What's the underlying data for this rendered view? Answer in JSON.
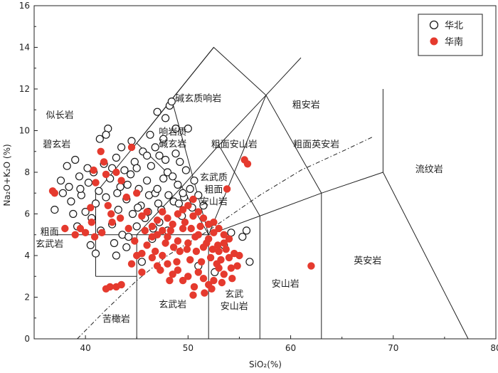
{
  "chart_data": {
    "type": "scatter",
    "xlabel": "SiO₂(%)",
    "ylabel": "Na₂O+K₂O (%)",
    "xlim": [
      35,
      80
    ],
    "ylim": [
      0,
      16
    ],
    "xticks": [
      40,
      50,
      60,
      70,
      80
    ],
    "yticks": [
      0,
      2,
      4,
      6,
      8,
      10,
      12,
      14,
      16
    ],
    "legend": {
      "placement": "top-right",
      "entries": [
        "华北",
        "华南"
      ]
    },
    "colors": {
      "huabei_edge": "#1a1a1a",
      "huabei_fill": "#ffffff",
      "huanan_fill": "#e53a2e",
      "line": "#222222"
    },
    "field_labels": [
      {
        "id": "foidite",
        "lines": [
          "似长岩"
        ],
        "x": 37.5,
        "y": 10.6
      },
      {
        "id": "basanite",
        "lines": [
          "碧玄岩"
        ],
        "x": 37.2,
        "y": 9.2
      },
      {
        "id": "phonolite",
        "lines": [
          "碱玄质响岩"
        ],
        "x": 51.0,
        "y": 11.4
      },
      {
        "id": "tephriphonolite",
        "lines": [
          "响岩质",
          "碱玄岩"
        ],
        "x": 48.5,
        "y": 9.8
      },
      {
        "id": "trachyandesite",
        "lines": [
          "粗面安山岩"
        ],
        "x": 54.5,
        "y": 9.2
      },
      {
        "id": "trachyte",
        "lines": [
          "粗安岩"
        ],
        "x": 61.5,
        "y": 11.1
      },
      {
        "id": "trachydacite",
        "lines": [
          "粗面英安岩"
        ],
        "x": 62.5,
        "y": 9.2
      },
      {
        "id": "rhyolite",
        "lines": [
          "流纹岩"
        ],
        "x": 73.5,
        "y": 8.0
      },
      {
        "id": "basaltic-trachyandesite",
        "lines": [
          "玄武质",
          "粗面",
          "安山岩"
        ],
        "x": 52.5,
        "y": 7.6
      },
      {
        "id": "trachybasalt",
        "lines": [
          "粗面",
          "玄武岩"
        ],
        "x": 36.5,
        "y": 5.0
      },
      {
        "id": "picrobasalt",
        "lines": [
          "苦橄岩"
        ],
        "x": 43.0,
        "y": 0.8
      },
      {
        "id": "basalt",
        "lines": [
          "玄武岩"
        ],
        "x": 48.5,
        "y": 1.5
      },
      {
        "id": "basaltic-andesite",
        "lines": [
          "玄武",
          "安山岩"
        ],
        "x": 54.5,
        "y": 2.0
      },
      {
        "id": "andesite",
        "lines": [
          "安山岩"
        ],
        "x": 59.5,
        "y": 2.5
      },
      {
        "id": "dacite",
        "lines": [
          "英安岩"
        ],
        "x": 67.5,
        "y": 3.6
      }
    ],
    "boundaries": [
      [
        [
          41,
          3
        ],
        [
          41,
          7
        ],
        [
          45,
          9.4
        ],
        [
          48.4,
          11.5
        ],
        [
          52.5,
          14
        ],
        [
          57.6,
          11.7
        ],
        [
          63,
          7
        ],
        [
          69,
          8
        ],
        [
          77.3,
          0
        ]
      ],
      [
        [
          41,
          3
        ],
        [
          45,
          3
        ]
      ],
      [
        [
          45,
          0
        ],
        [
          45,
          5
        ],
        [
          49.4,
          7.3
        ],
        [
          53,
          9.3
        ],
        [
          57.6,
          11.7
        ]
      ],
      [
        [
          52,
          0
        ],
        [
          52,
          5
        ],
        [
          57,
          5.9
        ],
        [
          63,
          7
        ]
      ],
      [
        [
          57,
          0
        ],
        [
          57,
          5.9
        ]
      ],
      [
        [
          63,
          0
        ],
        [
          63,
          7
        ]
      ],
      [
        [
          69,
          8
        ],
        [
          69,
          12
        ]
      ],
      [
        [
          45,
          5
        ],
        [
          52,
          5
        ],
        [
          57.6,
          11.7
        ],
        [
          61,
          13.5
        ]
      ],
      [
        [
          37,
          5
        ],
        [
          45,
          5
        ]
      ],
      [
        [
          45,
          9.4
        ],
        [
          52.5,
          14
        ]
      ],
      [
        [
          52,
          5
        ],
        [
          49.4,
          7.3
        ],
        [
          45,
          9.4
        ]
      ],
      [
        [
          52,
          5
        ],
        [
          48.4,
          11.5
        ]
      ],
      [
        [
          57,
          5.9
        ],
        [
          53,
          9.3
        ]
      ]
    ],
    "alkaline_line": [
      [
        39.2,
        0
      ],
      [
        42,
        1.4
      ],
      [
        45,
        2.8
      ],
      [
        48,
        4
      ],
      [
        52,
        5.2
      ],
      [
        57,
        6.9
      ],
      [
        61,
        8.1
      ],
      [
        65,
        9
      ],
      [
        68,
        9.7
      ]
    ],
    "series": [
      {
        "name": "华北",
        "points": [
          [
            37,
            6.2
          ],
          [
            37.6,
            7.6
          ],
          [
            37.8,
            7.0
          ],
          [
            38.2,
            8.3
          ],
          [
            38.4,
            7.3
          ],
          [
            38.6,
            6.6
          ],
          [
            38.8,
            6.0
          ],
          [
            39.0,
            8.6
          ],
          [
            39.2,
            5.4
          ],
          [
            39.4,
            7.8
          ],
          [
            39.6,
            6.9
          ],
          [
            40.0,
            6.1
          ],
          [
            40.3,
            7.5
          ],
          [
            40.6,
            5.8
          ],
          [
            40.8,
            8.0
          ],
          [
            41.0,
            6.5
          ],
          [
            41.3,
            7.1
          ],
          [
            41.5,
            5.2
          ],
          [
            41.8,
            8.4
          ],
          [
            42.2,
            10.1
          ],
          [
            42.0,
            6.8
          ],
          [
            42.4,
            7.7
          ],
          [
            42.6,
            5.5
          ],
          [
            42.8,
            4.6
          ],
          [
            43.0,
            8.7
          ],
          [
            43.2,
            6.2
          ],
          [
            43.4,
            7.3
          ],
          [
            43.6,
            5.0
          ],
          [
            43.8,
            8.1
          ],
          [
            44.0,
            6.7
          ],
          [
            44.2,
            4.9
          ],
          [
            44.4,
            7.9
          ],
          [
            44.6,
            6.0
          ],
          [
            44.8,
            8.5
          ],
          [
            45.0,
            5.4
          ],
          [
            45.2,
            7.2
          ],
          [
            45.4,
            6.4
          ],
          [
            45.6,
            9.0
          ],
          [
            45.8,
            5.8
          ],
          [
            46.0,
            7.6
          ],
          [
            46.2,
            6.9
          ],
          [
            46.4,
            8.3
          ],
          [
            46.6,
            5.3
          ],
          [
            46.8,
            7.0
          ],
          [
            47.0,
            10.9
          ],
          [
            47.2,
            8.8
          ],
          [
            47.4,
            6.2
          ],
          [
            47.6,
            7.7
          ],
          [
            47.8,
            10.6
          ],
          [
            48.0,
            8.0
          ],
          [
            48.2,
            11.2
          ],
          [
            48.4,
            11.4
          ],
          [
            48.6,
            6.6
          ],
          [
            48.8,
            10.1
          ],
          [
            49.0,
            7.4
          ],
          [
            49.2,
            8.5
          ],
          [
            49.4,
            5.9
          ],
          [
            49.6,
            6.8
          ],
          [
            49.8,
            8.1
          ],
          [
            50.0,
            10.1
          ],
          [
            50.2,
            7.2
          ],
          [
            50.4,
            6.3
          ],
          [
            40.5,
            4.5
          ],
          [
            41.0,
            4.1
          ],
          [
            43.0,
            4.0
          ],
          [
            44.0,
            4.4
          ],
          [
            45.5,
            3.7
          ],
          [
            46.5,
            4.8
          ],
          [
            47.2,
            5.6
          ],
          [
            48.0,
            5.2
          ],
          [
            43.5,
            9.2
          ],
          [
            44.5,
            9.5
          ],
          [
            46.3,
            9.8
          ],
          [
            47.6,
            9.6
          ],
          [
            45.0,
            8.2
          ],
          [
            46.0,
            8.8
          ],
          [
            47.0,
            7.2
          ],
          [
            48.5,
            7.8
          ],
          [
            49.5,
            7.0
          ],
          [
            50.6,
            7.6
          ],
          [
            51.0,
            6.9
          ],
          [
            51.5,
            6.4
          ],
          [
            42.6,
            8.2
          ],
          [
            43.1,
            7.0
          ],
          [
            44.1,
            7.4
          ],
          [
            45.1,
            6.3
          ],
          [
            46.1,
            6.1
          ],
          [
            47.1,
            6.5
          ],
          [
            48.1,
            6.9
          ],
          [
            49.1,
            6.5
          ],
          [
            39.5,
            7.2
          ],
          [
            40.2,
            8.2
          ],
          [
            41.4,
            9.6
          ],
          [
            42.0,
            9.8
          ],
          [
            46.8,
            9.2
          ],
          [
            47.8,
            8.6
          ],
          [
            48.8,
            8.9
          ],
          [
            55.3,
            4.9
          ],
          [
            55.7,
            5.2
          ],
          [
            56.0,
            3.7
          ],
          [
            53.5,
            4.5
          ],
          [
            54.2,
            5.1
          ],
          [
            51.0,
            3.5
          ],
          [
            52.6,
            3.2
          ]
        ]
      },
      {
        "name": "华南",
        "points": [
          [
            36.8,
            7.1
          ],
          [
            37.0,
            7.0
          ],
          [
            38.0,
            5.3
          ],
          [
            39.0,
            5.0
          ],
          [
            39.5,
            5.3
          ],
          [
            40.0,
            5.1
          ],
          [
            40.5,
            6.3
          ],
          [
            40.8,
            8.1
          ],
          [
            41.0,
            7.5
          ],
          [
            41.5,
            9.0
          ],
          [
            41.8,
            8.5
          ],
          [
            42.0,
            7.9
          ],
          [
            42.2,
            6.4
          ],
          [
            42.5,
            6.0
          ],
          [
            43.0,
            8.0
          ],
          [
            43.5,
            7.6
          ],
          [
            44.0,
            6.8
          ],
          [
            44.5,
            9.2
          ],
          [
            45.0,
            7.0
          ],
          [
            45.5,
            5.9
          ],
          [
            46.0,
            6.1
          ],
          [
            46.5,
            5.4
          ],
          [
            47.0,
            5.7
          ],
          [
            47.5,
            5.2
          ],
          [
            48.0,
            4.9
          ],
          [
            48.5,
            5.5
          ],
          [
            49.0,
            4.7
          ],
          [
            49.5,
            5.3
          ],
          [
            50.0,
            4.6
          ],
          [
            50.5,
            5.9
          ],
          [
            51.0,
            5.0
          ],
          [
            51.5,
            4.4
          ],
          [
            52.0,
            4.8
          ],
          [
            52.5,
            5.1
          ],
          [
            53.0,
            4.2
          ],
          [
            53.5,
            4.6
          ],
          [
            54.0,
            3.9
          ],
          [
            54.5,
            4.1
          ],
          [
            55.0,
            4.0
          ],
          [
            55.5,
            8.6
          ],
          [
            55.8,
            8.4
          ],
          [
            53.8,
            7.2
          ],
          [
            62.0,
            3.5
          ],
          [
            47.5,
            4.0
          ],
          [
            48.0,
            3.6
          ],
          [
            48.5,
            3.1
          ],
          [
            49.0,
            3.3
          ],
          [
            49.5,
            2.8
          ],
          [
            50.0,
            3.0
          ],
          [
            50.5,
            2.1
          ],
          [
            51.0,
            3.2
          ],
          [
            51.5,
            2.9
          ],
          [
            52.0,
            2.6
          ],
          [
            52.5,
            2.8
          ],
          [
            53.0,
            3.4
          ],
          [
            53.5,
            3.1
          ],
          [
            46.0,
            4.5
          ],
          [
            46.5,
            3.9
          ],
          [
            47.0,
            3.5
          ],
          [
            45.5,
            4.1
          ],
          [
            42.0,
            2.4
          ],
          [
            42.4,
            2.5
          ],
          [
            43.0,
            2.5
          ],
          [
            43.5,
            2.6
          ],
          [
            44.5,
            3.6
          ],
          [
            45.0,
            4.0
          ],
          [
            45.5,
            3.2
          ],
          [
            49.0,
            6.0
          ],
          [
            49.5,
            6.2
          ],
          [
            50.0,
            6.4
          ],
          [
            50.5,
            6.7
          ],
          [
            51.0,
            6.1
          ],
          [
            51.5,
            5.8
          ],
          [
            52.0,
            5.5
          ],
          [
            52.5,
            5.6
          ],
          [
            53.0,
            5.3
          ],
          [
            53.5,
            5.0
          ],
          [
            54.0,
            4.8
          ],
          [
            48.0,
            5.8
          ],
          [
            47.5,
            6.1
          ],
          [
            47.0,
            5.0
          ],
          [
            46.5,
            4.9
          ],
          [
            50.2,
            3.8
          ],
          [
            50.8,
            4.2
          ],
          [
            51.3,
            3.7
          ],
          [
            52.2,
            3.9
          ],
          [
            52.8,
            3.6
          ],
          [
            53.2,
            3.8
          ],
          [
            54.2,
            3.4
          ],
          [
            54.8,
            3.5
          ],
          [
            49.2,
            4.2
          ],
          [
            48.6,
            4.4
          ],
          [
            47.8,
            4.6
          ],
          [
            51.8,
            4.6
          ],
          [
            50.3,
            5.3
          ],
          [
            49.7,
            5.6
          ],
          [
            48.3,
            5.2
          ],
          [
            52.4,
            4.3
          ],
          [
            53.7,
            4.3
          ],
          [
            51.2,
            5.4
          ],
          [
            50.7,
            4.9
          ],
          [
            49.9,
            4.3
          ],
          [
            48.9,
            3.7
          ],
          [
            52.9,
            4.5
          ],
          [
            40.6,
            5.6
          ],
          [
            40.9,
            4.9
          ],
          [
            41.6,
            5.1
          ],
          [
            42.6,
            5.6
          ],
          [
            43.4,
            5.8
          ],
          [
            44.2,
            5.3
          ],
          [
            44.8,
            4.7
          ],
          [
            45.8,
            5.2
          ],
          [
            46.8,
            4.2
          ],
          [
            47.3,
            3.3
          ],
          [
            48.2,
            2.8
          ],
          [
            50.6,
            2.5
          ],
          [
            51.6,
            2.2
          ],
          [
            52.3,
            2.4
          ],
          [
            53.3,
            2.7
          ],
          [
            54.3,
            2.9
          ]
        ]
      }
    ]
  }
}
